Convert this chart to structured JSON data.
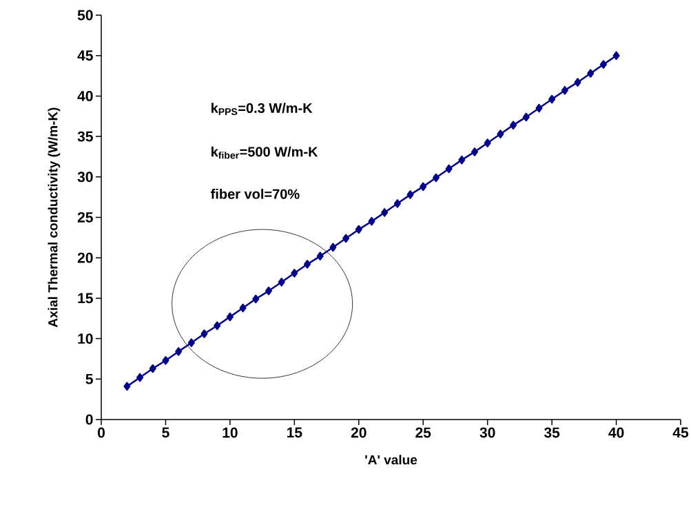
{
  "chart_data": {
    "type": "line",
    "xlabel": "'A' value",
    "ylabel": "Axial Thermal conductivity (W/m-K)",
    "x": [
      2,
      3,
      4,
      5,
      6,
      7,
      8,
      9,
      10,
      11,
      12,
      13,
      14,
      15,
      16,
      17,
      18,
      19,
      20,
      21,
      22,
      23,
      24,
      25,
      26,
      27,
      28,
      29,
      30,
      31,
      32,
      33,
      34,
      35,
      36,
      37,
      38,
      39,
      40
    ],
    "series": [
      {
        "color": "#00008b",
        "values": [
          4.1,
          5.2,
          6.3,
          7.3,
          8.4,
          9.5,
          10.6,
          11.6,
          12.7,
          13.8,
          14.9,
          15.9,
          17.0,
          18.1,
          19.2,
          20.2,
          21.3,
          22.4,
          23.5,
          24.5,
          25.6,
          26.7,
          27.8,
          28.8,
          29.9,
          31.0,
          32.1,
          33.1,
          34.2,
          35.3,
          36.4,
          37.4,
          38.5,
          39.6,
          40.7,
          41.7,
          42.8,
          43.9,
          45.0
        ]
      }
    ],
    "xlim": [
      0,
      45
    ],
    "ylim": [
      0,
      50
    ],
    "xticks": [
      0,
      5,
      10,
      15,
      20,
      25,
      30,
      35,
      40,
      45
    ],
    "yticks": [
      0,
      5,
      10,
      15,
      20,
      25,
      30,
      35,
      40,
      45,
      50
    ],
    "marker": "diamond",
    "line_style": "solid",
    "grid": false,
    "annotations": [
      "k$_{PPS}$=0.3 W/m-K",
      "k$_{fiber}$=500 W/m-K",
      "fiber vol=70%"
    ]
  }
}
